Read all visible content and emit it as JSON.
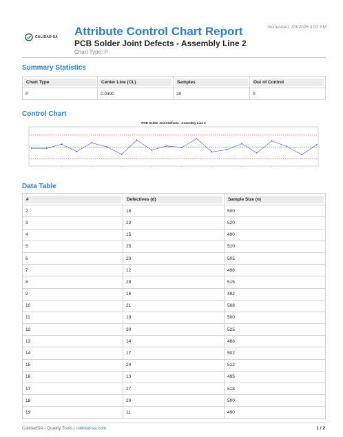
{
  "header": {
    "logo_text": "CALIDAD-SA",
    "title": "Attribute Control Chart Report",
    "subtitle": "PCB Solder Joint Defects - Assembly Line 2",
    "chart_type_line": "Chart Type: P",
    "generated": "Generated: 3/3/2026 4:02 PM"
  },
  "summary": {
    "section_title": "Summary Statistics",
    "headers": [
      "Chart Type",
      "Center Line (CL)",
      "Samples",
      "Out of Control"
    ],
    "values": [
      "P",
      "0.0390",
      "20",
      "0"
    ]
  },
  "control_chart": {
    "section_title": "Control Chart"
  },
  "chart_data": {
    "type": "line",
    "title": "PCB Solder Joint Defects - Assembly Line 2",
    "ylabel": "",
    "xlabel": "",
    "x": [
      1,
      2,
      3,
      4,
      5,
      6,
      7,
      8,
      9,
      10,
      11,
      12,
      13,
      14,
      15,
      16,
      17,
      18,
      19,
      20
    ],
    "series": [
      {
        "values": [
          0.036,
          0.036,
          0.045,
          0.029,
          0.048,
          0.039,
          0.023,
          0.054,
          0.032,
          0.041,
          0.038,
          0.057,
          0.028,
          0.033,
          0.046,
          0.026,
          0.052,
          0.04,
          0.022,
          0.044
        ]
      }
    ],
    "center_line": 0.039,
    "ucl": 0.065,
    "lcl": 0.013,
    "ylim": [
      0.0,
      0.08
    ],
    "xlim": [
      1,
      20
    ],
    "colors": {
      "line": "#4a4adf",
      "center": "#3aa03a",
      "limits": "#d94040"
    }
  },
  "data_table": {
    "section_title": "Data Table",
    "headers": [
      "#",
      "Defectives (d)",
      "Sample Size (n)"
    ],
    "rows": [
      [
        "2",
        "18",
        "500"
      ],
      [
        "3",
        "22",
        "520"
      ],
      [
        "4",
        "15",
        "490"
      ],
      [
        "5",
        "25",
        "510"
      ],
      [
        "6",
        "20",
        "505"
      ],
      [
        "7",
        "12",
        "498"
      ],
      [
        "8",
        "28",
        "515"
      ],
      [
        "9",
        "16",
        "492"
      ],
      [
        "10",
        "21",
        "508"
      ],
      [
        "11",
        "19",
        "500"
      ],
      [
        "12",
        "30",
        "525"
      ],
      [
        "13",
        "14",
        "488"
      ],
      [
        "14",
        "17",
        "502"
      ],
      [
        "15",
        "24",
        "512"
      ],
      [
        "16",
        "13",
        "495"
      ],
      [
        "17",
        "27",
        "518"
      ],
      [
        "18",
        "20",
        "500"
      ],
      [
        "19",
        "11",
        "490"
      ]
    ]
  },
  "footer": {
    "left_text": "CalidadSA - Quality Tools | ",
    "link_text": "calidad-sa.com",
    "page": "1 / 2"
  }
}
